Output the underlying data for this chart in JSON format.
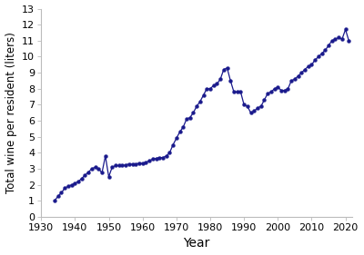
{
  "years": [
    1934,
    1935,
    1936,
    1937,
    1938,
    1939,
    1940,
    1941,
    1942,
    1943,
    1944,
    1945,
    1946,
    1947,
    1948,
    1949,
    1950,
    1951,
    1952,
    1953,
    1954,
    1955,
    1956,
    1957,
    1958,
    1959,
    1960,
    1961,
    1962,
    1963,
    1964,
    1965,
    1966,
    1967,
    1968,
    1969,
    1970,
    1971,
    1972,
    1973,
    1974,
    1975,
    1976,
    1977,
    1978,
    1979,
    1980,
    1981,
    1982,
    1983,
    1984,
    1985,
    1986,
    1987,
    1988,
    1989,
    1990,
    1991,
    1992,
    1993,
    1994,
    1995,
    1996,
    1997,
    1998,
    1999,
    2000,
    2001,
    2002,
    2003,
    2004,
    2005,
    2006,
    2007,
    2008,
    2009,
    2010,
    2011,
    2012,
    2013,
    2014,
    2015,
    2016,
    2017,
    2018,
    2019,
    2020,
    2021
  ],
  "values": [
    1.0,
    1.3,
    1.5,
    1.8,
    1.9,
    2.0,
    2.1,
    2.2,
    2.4,
    2.6,
    2.8,
    3.0,
    3.1,
    3.0,
    2.75,
    3.8,
    2.5,
    3.1,
    3.2,
    3.2,
    3.2,
    3.25,
    3.3,
    3.3,
    3.3,
    3.35,
    3.35,
    3.4,
    3.5,
    3.6,
    3.65,
    3.7,
    3.7,
    3.8,
    4.0,
    4.5,
    4.9,
    5.3,
    5.6,
    6.1,
    6.2,
    6.5,
    6.9,
    7.2,
    7.6,
    8.0,
    8.0,
    8.2,
    8.3,
    8.6,
    9.2,
    9.3,
    8.5,
    7.8,
    7.8,
    7.8,
    7.0,
    6.9,
    6.5,
    6.6,
    6.8,
    6.9,
    7.3,
    7.7,
    7.8,
    8.0,
    8.1,
    7.9,
    7.9,
    8.0,
    8.5,
    8.6,
    8.8,
    9.0,
    9.2,
    9.4,
    9.5,
    9.8,
    10.0,
    10.2,
    10.4,
    10.7,
    11.0,
    11.1,
    11.2,
    11.1,
    11.7,
    11.0
  ],
  "color": "#1a1a8c",
  "marker": "o",
  "markersize": 2.8,
  "linewidth": 0.9,
  "xlabel": "Year",
  "ylabel": "Total wine per resident (liters)",
  "xlim": [
    1930,
    2022
  ],
  "ylim": [
    0,
    13
  ],
  "yticks": [
    0,
    1,
    2,
    3,
    4,
    5,
    6,
    7,
    8,
    9,
    10,
    11,
    12,
    13
  ],
  "xticks": [
    1930,
    1940,
    1950,
    1960,
    1970,
    1980,
    1990,
    2000,
    2010,
    2020
  ],
  "background_color": "#ffffff",
  "xlabel_fontsize": 10,
  "ylabel_fontsize": 8.5,
  "tick_labelsize": 8,
  "spine_color": "#bbbbbb"
}
